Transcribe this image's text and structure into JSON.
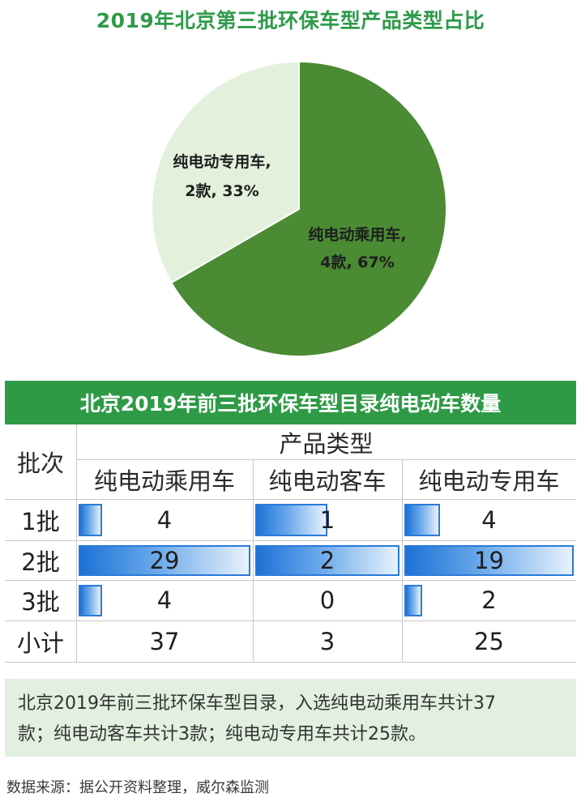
{
  "chart_data": [
    {
      "type": "pie",
      "title": "2019年北京第三批环保车型产品类型占比",
      "slices": [
        {
          "name": "纯电动乘用车",
          "value": 4,
          "unit": "款",
          "percent": 67,
          "label_line1": "纯电动乘用车,",
          "label_line2": "4款, 67%",
          "color": "#4a8b33"
        },
        {
          "name": "纯电动专用车",
          "value": 2,
          "unit": "款",
          "percent": 33,
          "label_line1": "纯电动专用车,",
          "label_line2": "2款, 33%",
          "color": "#e3f1dc"
        }
      ]
    },
    {
      "type": "table",
      "title": "北京2019年前三批环保车型目录纯电动车数量",
      "row_header": "批次",
      "group_header": "产品类型",
      "columns": [
        "纯电动乘用车",
        "纯电动客车",
        "纯电动专用车"
      ],
      "rows": [
        {
          "label": "1批",
          "values": [
            4,
            1,
            4
          ]
        },
        {
          "label": "2批",
          "values": [
            29,
            2,
            19
          ]
        },
        {
          "label": "3批",
          "values": [
            4,
            0,
            2
          ]
        }
      ],
      "total": {
        "label": "小计",
        "values": [
          37,
          3,
          25
        ]
      }
    }
  ],
  "colors": {
    "title_green": "#2f9a46",
    "header_bar": "#2e9a46",
    "note_bg": "#e1f0df",
    "databar": "#1d72d6"
  },
  "note": {
    "line1": "北京2019年前三批环保车型目录，入选纯电动乘用车共计37",
    "line2": "款；纯电动客车共计3款；纯电动专用车共计25款。"
  },
  "source": "数据来源：据公开资料整理，威尔森监测"
}
